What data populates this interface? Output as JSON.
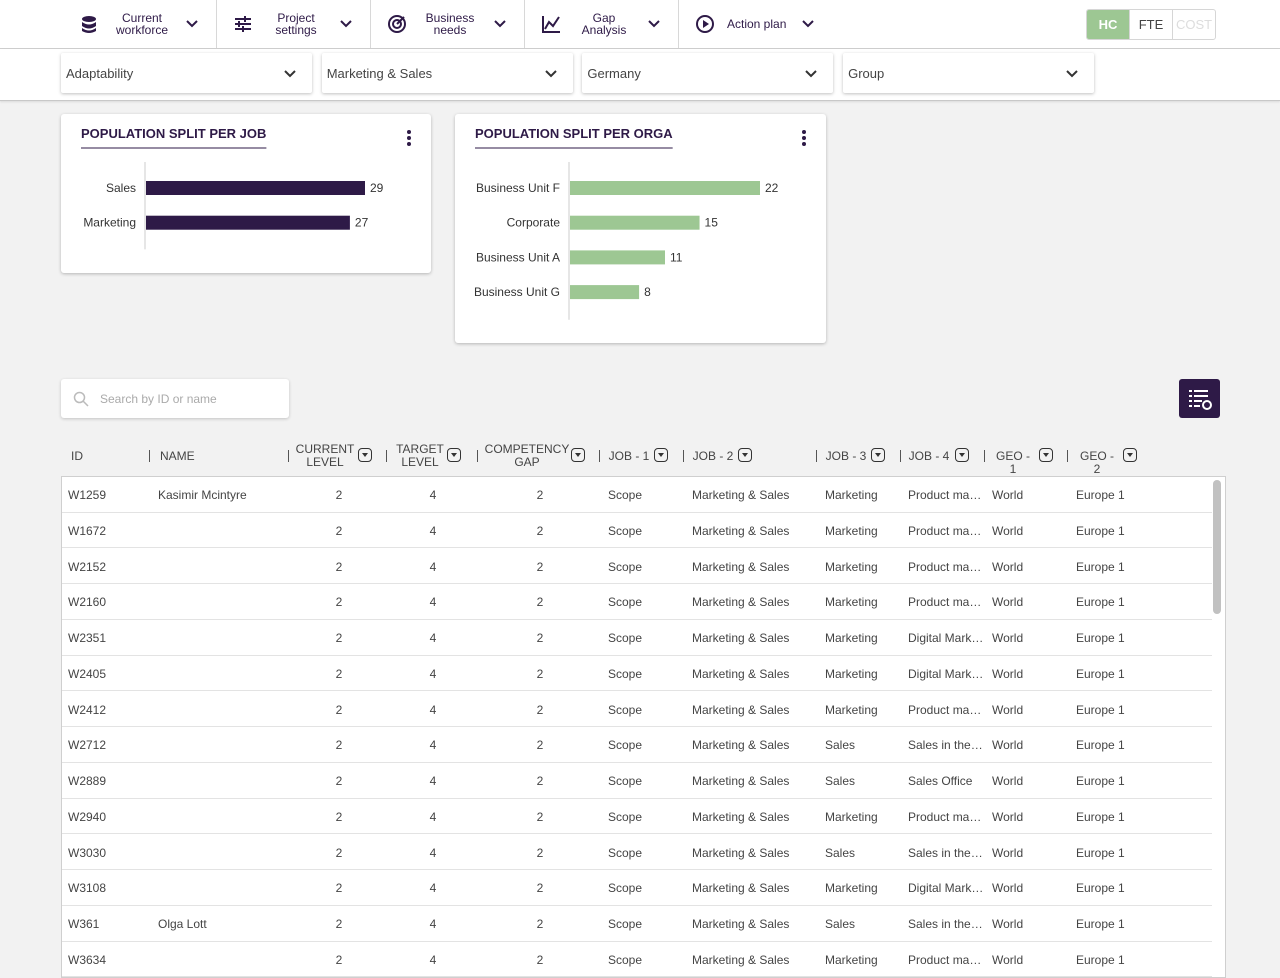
{
  "nav": {
    "items": [
      "Current workforce",
      "Project settings",
      "Business needs",
      "Gap Analysis",
      "Action plan"
    ],
    "units": [
      "HC",
      "FTE",
      "COST"
    ]
  },
  "filters": [
    "Adaptability",
    "Marketing & Sales",
    "Germany",
    "Group"
  ],
  "chart_data": [
    {
      "type": "bar",
      "orientation": "horizontal",
      "title": "POPULATION SPLIT PER JOB",
      "categories": [
        "Sales",
        "Marketing"
      ],
      "values": [
        29,
        27
      ],
      "color": "#2e1a47"
    },
    {
      "type": "bar",
      "orientation": "horizontal",
      "title": "POPULATION SPLIT PER ORGA",
      "categories": [
        "Business Unit F",
        "Corporate",
        "Business Unit A",
        "Business Unit G"
      ],
      "values": [
        22,
        15,
        11,
        8
      ],
      "color": "#9dc793"
    }
  ],
  "table": {
    "search_placeholder": "Search by ID or name",
    "columns": [
      "ID",
      "NAME",
      "CURRENT LEVEL",
      "TARGET LEVEL",
      "COMPETENCY GAP",
      "JOB - 1",
      "JOB - 2",
      "JOB - 3",
      "JOB - 4",
      "GEO - 1",
      "GEO - 2"
    ],
    "rows": [
      [
        "W1259",
        "Kasimir Mcintyre",
        2,
        4,
        2,
        "Scope",
        "Marketing & Sales",
        "Marketing",
        "Product ma…",
        "World",
        "Europe 1"
      ],
      [
        "W1672",
        null,
        2,
        4,
        2,
        "Scope",
        "Marketing & Sales",
        "Marketing",
        "Product ma…",
        "World",
        "Europe 1"
      ],
      [
        "W2152",
        null,
        2,
        4,
        2,
        "Scope",
        "Marketing & Sales",
        "Marketing",
        "Product ma…",
        "World",
        "Europe 1"
      ],
      [
        "W2160",
        null,
        2,
        4,
        2,
        "Scope",
        "Marketing & Sales",
        "Marketing",
        "Product ma…",
        "World",
        "Europe 1"
      ],
      [
        "W2351",
        null,
        2,
        4,
        2,
        "Scope",
        "Marketing & Sales",
        "Marketing",
        "Digital Mark…",
        "World",
        "Europe 1"
      ],
      [
        "W2405",
        null,
        2,
        4,
        2,
        "Scope",
        "Marketing & Sales",
        "Marketing",
        "Digital Mark…",
        "World",
        "Europe 1"
      ],
      [
        "W2412",
        null,
        2,
        4,
        2,
        "Scope",
        "Marketing & Sales",
        "Marketing",
        "Product ma…",
        "World",
        "Europe 1"
      ],
      [
        "W2712",
        null,
        2,
        4,
        2,
        "Scope",
        "Marketing & Sales",
        "Sales",
        "Sales in the…",
        "World",
        "Europe 1"
      ],
      [
        "W2889",
        null,
        2,
        4,
        2,
        "Scope",
        "Marketing & Sales",
        "Sales",
        "Sales Office",
        "World",
        "Europe 1"
      ],
      [
        "W2940",
        null,
        2,
        4,
        2,
        "Scope",
        "Marketing & Sales",
        "Marketing",
        "Product ma…",
        "World",
        "Europe 1"
      ],
      [
        "W3030",
        null,
        2,
        4,
        2,
        "Scope",
        "Marketing & Sales",
        "Sales",
        "Sales in the…",
        "World",
        "Europe 1"
      ],
      [
        "W3108",
        null,
        2,
        4,
        2,
        "Scope",
        "Marketing & Sales",
        "Marketing",
        "Digital Mark…",
        "World",
        "Europe 1"
      ],
      [
        "W361",
        "Olga Lott",
        2,
        4,
        2,
        "Scope",
        "Marketing & Sales",
        "Sales",
        "Sales in the…",
        "World",
        "Europe 1"
      ],
      [
        "W3634",
        null,
        2,
        4,
        2,
        "Scope",
        "Marketing & Sales",
        "Marketing",
        "Product ma…",
        "World",
        "Europe 1"
      ]
    ]
  }
}
